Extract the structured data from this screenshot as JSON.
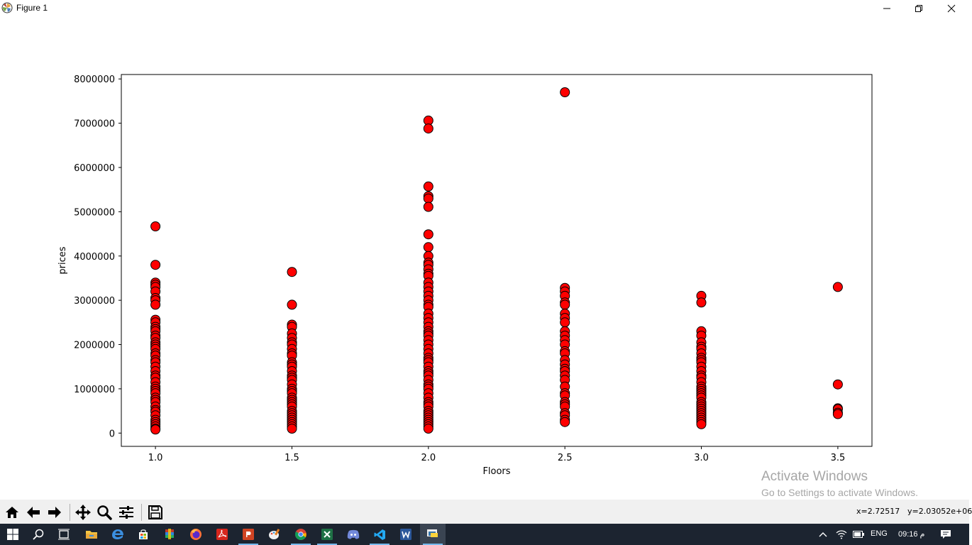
{
  "window": {
    "title": "Figure 1",
    "app_icon": "matplotlib-icon",
    "controls": [
      "minimize-icon",
      "restore-icon",
      "close-icon"
    ]
  },
  "chart_data": {
    "type": "scatter",
    "title": "",
    "xlabel": "Floors",
    "ylabel": "prices",
    "xlim": [
      0.875,
      3.625
    ],
    "ylim": [
      -300000,
      8100000
    ],
    "x_ticks": [
      1.0,
      1.5,
      2.0,
      2.5,
      3.0,
      3.5
    ],
    "x_tick_labels": [
      "1.0",
      "1.5",
      "2.0",
      "2.5",
      "3.0",
      "3.5"
    ],
    "y_ticks": [
      0,
      1000000,
      2000000,
      3000000,
      4000000,
      5000000,
      6000000,
      7000000,
      8000000
    ],
    "y_tick_labels": [
      "0",
      "1000000",
      "2000000",
      "3000000",
      "4000000",
      "5000000",
      "6000000",
      "7000000",
      "8000000"
    ],
    "grid": false,
    "legend": "none",
    "marker_color": "#ff0000",
    "marker_edge_color": "#000000",
    "series": [
      {
        "points": [
          [
            1.0,
            4670000
          ],
          [
            1.0,
            3800000
          ],
          [
            1.0,
            3400000
          ],
          [
            1.0,
            3350000
          ],
          [
            1.0,
            3300000
          ],
          [
            1.0,
            3200000
          ],
          [
            1.0,
            3050000
          ],
          [
            1.0,
            3000000
          ],
          [
            1.0,
            2900000
          ],
          [
            1.0,
            2560000
          ],
          [
            1.0,
            2500000
          ],
          [
            1.0,
            2400000
          ],
          [
            1.0,
            2350000
          ],
          [
            1.0,
            2300000
          ],
          [
            1.0,
            2200000
          ],
          [
            1.0,
            2150000
          ],
          [
            1.0,
            2050000
          ],
          [
            1.0,
            2000000
          ],
          [
            1.0,
            1950000
          ],
          [
            1.0,
            1900000
          ],
          [
            1.0,
            1800000
          ],
          [
            1.0,
            1750000
          ],
          [
            1.0,
            1650000
          ],
          [
            1.0,
            1600000
          ],
          [
            1.0,
            1500000
          ],
          [
            1.0,
            1400000
          ],
          [
            1.0,
            1300000
          ],
          [
            1.0,
            1250000
          ],
          [
            1.0,
            1150000
          ],
          [
            1.0,
            1050000
          ],
          [
            1.0,
            1000000
          ],
          [
            1.0,
            950000
          ],
          [
            1.0,
            900000
          ],
          [
            1.0,
            800000
          ],
          [
            1.0,
            750000
          ],
          [
            1.0,
            700000
          ],
          [
            1.0,
            600000
          ],
          [
            1.0,
            520000
          ],
          [
            1.0,
            480000
          ],
          [
            1.0,
            400000
          ],
          [
            1.0,
            300000
          ],
          [
            1.0,
            250000
          ],
          [
            1.0,
            200000
          ],
          [
            1.0,
            150000
          ],
          [
            1.0,
            100000
          ],
          [
            1.0,
            80000
          ],
          [
            1.5,
            3640000
          ],
          [
            1.5,
            2900000
          ],
          [
            1.5,
            2450000
          ],
          [
            1.5,
            2400000
          ],
          [
            1.5,
            2250000
          ],
          [
            1.5,
            2150000
          ],
          [
            1.5,
            2050000
          ],
          [
            1.5,
            2000000
          ],
          [
            1.5,
            1900000
          ],
          [
            1.5,
            1800000
          ],
          [
            1.5,
            1750000
          ],
          [
            1.5,
            1600000
          ],
          [
            1.5,
            1550000
          ],
          [
            1.5,
            1500000
          ],
          [
            1.5,
            1400000
          ],
          [
            1.5,
            1300000
          ],
          [
            1.5,
            1250000
          ],
          [
            1.5,
            1200000
          ],
          [
            1.5,
            1100000
          ],
          [
            1.5,
            1000000
          ],
          [
            1.5,
            950000
          ],
          [
            1.5,
            900000
          ],
          [
            1.5,
            800000
          ],
          [
            1.5,
            750000
          ],
          [
            1.5,
            700000
          ],
          [
            1.5,
            650000
          ],
          [
            1.5,
            600000
          ],
          [
            1.5,
            500000
          ],
          [
            1.5,
            450000
          ],
          [
            1.5,
            400000
          ],
          [
            1.5,
            350000
          ],
          [
            1.5,
            300000
          ],
          [
            1.5,
            250000
          ],
          [
            1.5,
            200000
          ],
          [
            1.5,
            150000
          ],
          [
            1.5,
            100000
          ],
          [
            2.0,
            7060000
          ],
          [
            2.0,
            6880000
          ],
          [
            2.0,
            5570000
          ],
          [
            2.0,
            5350000
          ],
          [
            2.0,
            5300000
          ],
          [
            2.0,
            5110000
          ],
          [
            2.0,
            4490000
          ],
          [
            2.0,
            4200000
          ],
          [
            2.0,
            4000000
          ],
          [
            2.0,
            3850000
          ],
          [
            2.0,
            3800000
          ],
          [
            2.0,
            3700000
          ],
          [
            2.0,
            3600000
          ],
          [
            2.0,
            3550000
          ],
          [
            2.0,
            3400000
          ],
          [
            2.0,
            3300000
          ],
          [
            2.0,
            3200000
          ],
          [
            2.0,
            3100000
          ],
          [
            2.0,
            3000000
          ],
          [
            2.0,
            2900000
          ],
          [
            2.0,
            2850000
          ],
          [
            2.0,
            2700000
          ],
          [
            2.0,
            2600000
          ],
          [
            2.0,
            2500000
          ],
          [
            2.0,
            2400000
          ],
          [
            2.0,
            2300000
          ],
          [
            2.0,
            2250000
          ],
          [
            2.0,
            2200000
          ],
          [
            2.0,
            2100000
          ],
          [
            2.0,
            2000000
          ],
          [
            2.0,
            1900000
          ],
          [
            2.0,
            1800000
          ],
          [
            2.0,
            1700000
          ],
          [
            2.0,
            1650000
          ],
          [
            2.0,
            1600000
          ],
          [
            2.0,
            1500000
          ],
          [
            2.0,
            1400000
          ],
          [
            2.0,
            1350000
          ],
          [
            2.0,
            1300000
          ],
          [
            2.0,
            1200000
          ],
          [
            2.0,
            1100000
          ],
          [
            2.0,
            1050000
          ],
          [
            2.0,
            1000000
          ],
          [
            2.0,
            900000
          ],
          [
            2.0,
            800000
          ],
          [
            2.0,
            700000
          ],
          [
            2.0,
            650000
          ],
          [
            2.0,
            600000
          ],
          [
            2.0,
            500000
          ],
          [
            2.0,
            450000
          ],
          [
            2.0,
            400000
          ],
          [
            2.0,
            350000
          ],
          [
            2.0,
            300000
          ],
          [
            2.0,
            250000
          ],
          [
            2.0,
            200000
          ],
          [
            2.0,
            150000
          ],
          [
            2.0,
            100000
          ],
          [
            2.5,
            7700000
          ],
          [
            2.5,
            3280000
          ],
          [
            2.5,
            3200000
          ],
          [
            2.5,
            3100000
          ],
          [
            2.5,
            2950000
          ],
          [
            2.5,
            2900000
          ],
          [
            2.5,
            2700000
          ],
          [
            2.5,
            2600000
          ],
          [
            2.5,
            2500000
          ],
          [
            2.5,
            2300000
          ],
          [
            2.5,
            2200000
          ],
          [
            2.5,
            2100000
          ],
          [
            2.5,
            2000000
          ],
          [
            2.5,
            1850000
          ],
          [
            2.5,
            1800000
          ],
          [
            2.5,
            1650000
          ],
          [
            2.5,
            1550000
          ],
          [
            2.5,
            1450000
          ],
          [
            2.5,
            1400000
          ],
          [
            2.5,
            1300000
          ],
          [
            2.5,
            1200000
          ],
          [
            2.5,
            1050000
          ],
          [
            2.5,
            900000
          ],
          [
            2.5,
            850000
          ],
          [
            2.5,
            700000
          ],
          [
            2.5,
            650000
          ],
          [
            2.5,
            600000
          ],
          [
            2.5,
            450000
          ],
          [
            2.5,
            400000
          ],
          [
            2.5,
            300000
          ],
          [
            2.5,
            250000
          ],
          [
            3.0,
            3100000
          ],
          [
            3.0,
            2950000
          ],
          [
            3.0,
            2300000
          ],
          [
            3.0,
            2200000
          ],
          [
            3.0,
            2050000
          ],
          [
            3.0,
            1950000
          ],
          [
            3.0,
            1900000
          ],
          [
            3.0,
            1800000
          ],
          [
            3.0,
            1700000
          ],
          [
            3.0,
            1650000
          ],
          [
            3.0,
            1600000
          ],
          [
            3.0,
            1500000
          ],
          [
            3.0,
            1400000
          ],
          [
            3.0,
            1300000
          ],
          [
            3.0,
            1250000
          ],
          [
            3.0,
            1150000
          ],
          [
            3.0,
            1050000
          ],
          [
            3.0,
            1000000
          ],
          [
            3.0,
            950000
          ],
          [
            3.0,
            900000
          ],
          [
            3.0,
            850000
          ],
          [
            3.0,
            800000
          ],
          [
            3.0,
            700000
          ],
          [
            3.0,
            650000
          ],
          [
            3.0,
            600000
          ],
          [
            3.0,
            550000
          ],
          [
            3.0,
            500000
          ],
          [
            3.0,
            450000
          ],
          [
            3.0,
            400000
          ],
          [
            3.0,
            350000
          ],
          [
            3.0,
            300000
          ],
          [
            3.0,
            250000
          ],
          [
            3.0,
            200000
          ],
          [
            3.5,
            3300000
          ],
          [
            3.5,
            1100000
          ],
          [
            3.5,
            560000
          ],
          [
            3.5,
            540000
          ],
          [
            3.5,
            460000
          ],
          [
            3.5,
            430000
          ]
        ]
      }
    ]
  },
  "toolbar": {
    "buttons": [
      {
        "name": "home-icon",
        "x": 17
      },
      {
        "name": "back-arrow-icon",
        "x": 47
      },
      {
        "name": "forward-arrow-icon",
        "x": 77
      },
      {
        "name": "pan-icon",
        "x": 117
      },
      {
        "name": "zoom-icon",
        "x": 147
      },
      {
        "name": "configure-subplots-icon",
        "x": 178
      },
      {
        "name": "save-icon",
        "x": 219
      }
    ],
    "coord_x": "x=2.72517",
    "coord_y": "y=2.03052e+06"
  },
  "watermark": {
    "line1": "Activate Windows",
    "line2": "Go to Settings to activate Windows."
  },
  "taskbar": {
    "items": [
      "windows-start-icon",
      "search-icon",
      "task-view-icon",
      "file-explorer-icon",
      "edge-icon",
      "store-icon",
      "archive-app-icon",
      "firefox-icon",
      "acrobat-icon",
      "powerpoint-icon",
      "paint-icon",
      "chrome-icon",
      "excel-icon",
      "discord-icon",
      "vscode-icon",
      "word-icon",
      "python-icon"
    ],
    "tray_icons": [
      "chevron-up-icon",
      "wifi-icon",
      "battery-icon"
    ],
    "language": "ENG",
    "clock": "09:16 م",
    "notification_icon": "notification-icon"
  }
}
